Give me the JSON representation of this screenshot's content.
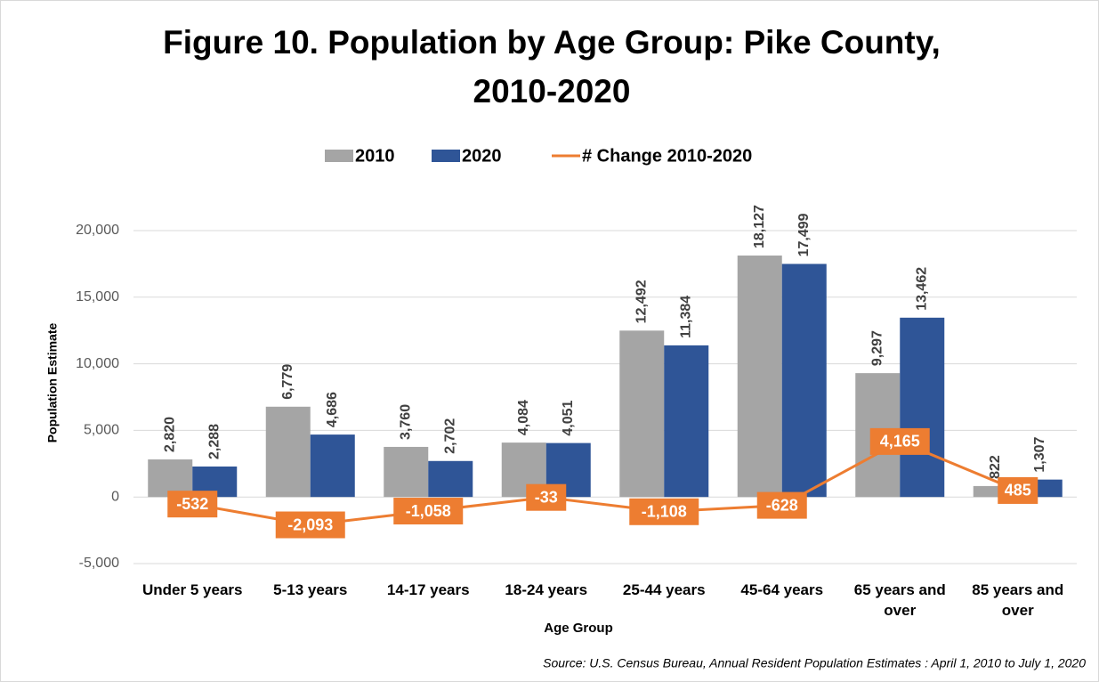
{
  "chart_data": {
    "type": "bar",
    "title": "Figure 10. Population by Age Group: Pike County, 2010-2020",
    "x_label": "Age Group",
    "y_label": "Population Estimate",
    "source": "Source: U.S. Census Bureau, Annual Resident Population Estimates : April 1, 2010 to July 1, 2020",
    "categories": [
      "Under 5 years",
      "5-13 years",
      "14-17 years",
      "18-24 years",
      "25-44 years",
      "45-64 years",
      "65 years and over",
      "85 years and over"
    ],
    "series": [
      {
        "name": "2010",
        "color": "#a5a5a5",
        "type": "bar",
        "values": [
          2820,
          6779,
          3760,
          4084,
          12492,
          18127,
          9297,
          822
        ],
        "value_labels": [
          "2,820",
          "6,779",
          "3,760",
          "4,084",
          "12,492",
          "18,127",
          "9,297",
          "822"
        ]
      },
      {
        "name": "2020",
        "color": "#2f5597",
        "type": "bar",
        "values": [
          2288,
          4686,
          2702,
          4051,
          11384,
          17499,
          13462,
          1307
        ],
        "value_labels": [
          "2,288",
          "4,686",
          "2,702",
          "4,051",
          "11,384",
          "17,499",
          "13,462",
          "1,307"
        ]
      },
      {
        "name": "# Change 2010-2020",
        "color": "#ed7d31",
        "type": "line",
        "values": [
          -532,
          -2093,
          -1058,
          -33,
          -1108,
          -628,
          4165,
          485
        ],
        "value_labels": [
          "-532",
          "-2,093",
          "-1,058",
          "-33",
          "-1,108",
          "-628",
          "4,165",
          "485"
        ]
      }
    ],
    "ylim": [
      -5000,
      20000
    ],
    "yticks": [
      {
        "value": -5000,
        "label": "-5,000"
      },
      0,
      {
        "value": 5000,
        "label": "5,000"
      },
      {
        "value": 10000,
        "label": "10,000"
      },
      {
        "value": 15000,
        "label": "15,000"
      },
      {
        "value": 20000,
        "label": "20,000"
      }
    ],
    "grid": true,
    "legend": "top"
  }
}
